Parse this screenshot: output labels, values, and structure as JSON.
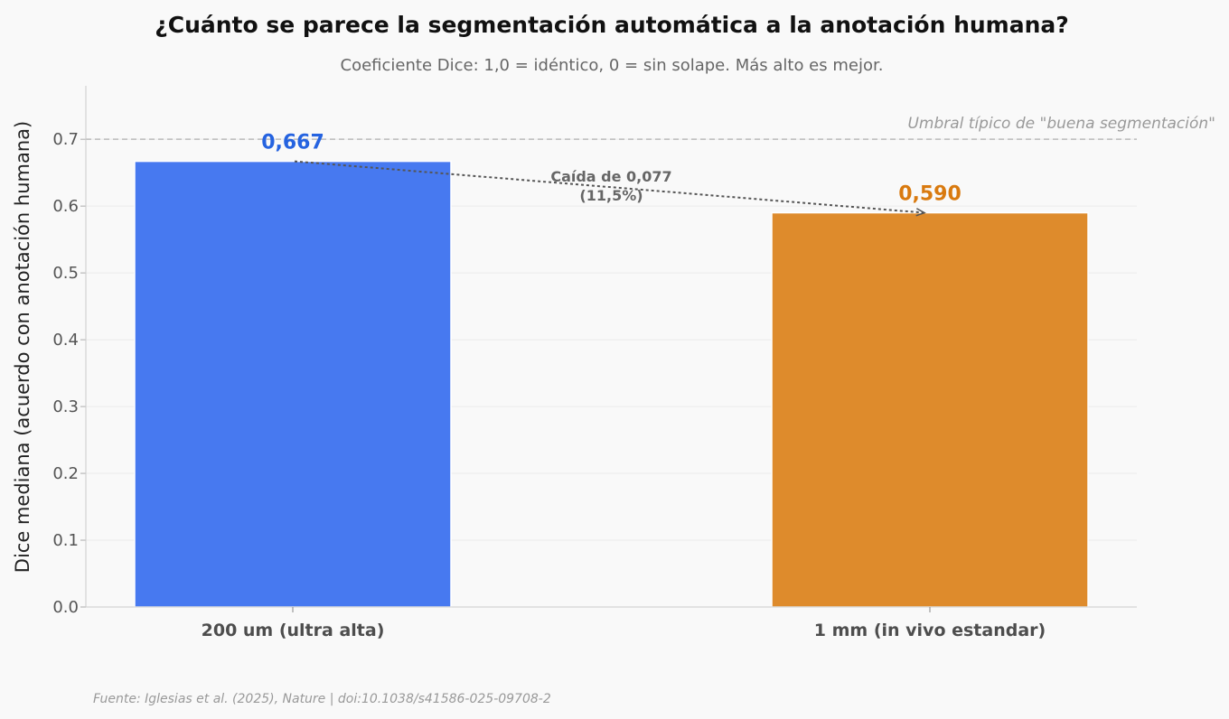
{
  "chart_data": {
    "type": "bar",
    "title": "¿Cuánto se parece la segmentación automática a la anotación humana?",
    "subtitle": "Coeficiente Dice: 1,0 = idéntico, 0 = sin solape. Más alto es mejor.",
    "xlabel": "",
    "ylabel": "Dice mediana (acuerdo con anotación humana)",
    "ylim": [
      0,
      0.78
    ],
    "yticks": [
      0.0,
      0.1,
      0.2,
      0.3,
      0.4,
      0.5,
      0.6,
      0.7
    ],
    "ytick_labels": [
      "0.0",
      "0.1",
      "0.2",
      "0.3",
      "0.4",
      "0.5",
      "0.6",
      "0.7"
    ],
    "grid": true,
    "categories": [
      "200 um (ultra alta)",
      "1 mm (in vivo estandar)"
    ],
    "values": [
      0.667,
      0.59
    ],
    "value_labels": [
      "0,667",
      "0,590"
    ],
    "bar_colors": [
      "#4779f0",
      "#de8b2c"
    ],
    "label_colors": [
      "#2563e0",
      "#d97a0f"
    ],
    "reference_line": {
      "value": 0.7,
      "label": "Umbral típico de \"buena segmentación\"",
      "color": "#bbbbbb"
    },
    "annotation": {
      "lines": [
        "Caída de 0,077",
        "(11,5%)"
      ],
      "from_category": 0,
      "to_category": 1
    },
    "source": "Fuente: Iglesias et al. (2025), Nature | doi:10.1038/s41586-025-09708-2"
  }
}
